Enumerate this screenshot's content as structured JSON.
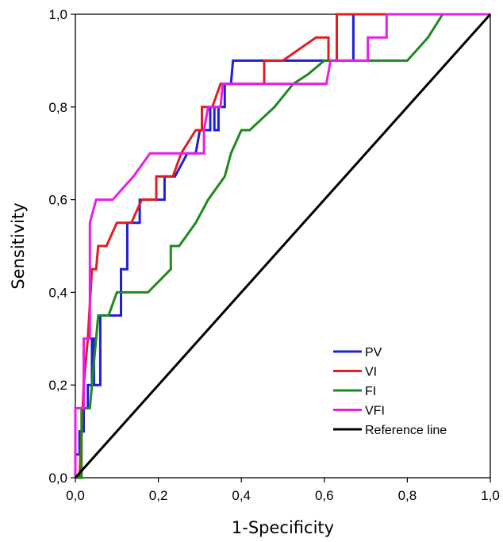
{
  "chart_data": {
    "type": "line",
    "title": "",
    "xlabel": "1-Specificity",
    "ylabel": "Sensitivity",
    "xlim": [
      0,
      1
    ],
    "ylim": [
      0,
      1
    ],
    "grid": false,
    "legend_placement": "bottom-right",
    "x_ticks": [
      "0,0",
      "0,2",
      "0,4",
      "0,6",
      "0,8",
      "1,0"
    ],
    "y_ticks": [
      "0,0",
      "0,2",
      "0,4",
      "0,6",
      "0,8",
      "1,0"
    ],
    "series": [
      {
        "name": "PV",
        "color": "#1f1fd6",
        "points": [
          [
            0,
            0
          ],
          [
            0,
            0.05
          ],
          [
            0.01,
            0.05
          ],
          [
            0.01,
            0.1
          ],
          [
            0.02,
            0.1
          ],
          [
            0.02,
            0.15
          ],
          [
            0.03,
            0.15
          ],
          [
            0.03,
            0.2
          ],
          [
            0.04,
            0.2
          ],
          [
            0.04,
            0.3
          ],
          [
            0.045,
            0.3
          ],
          [
            0.045,
            0.2
          ],
          [
            0.06,
            0.2
          ],
          [
            0.06,
            0.35
          ],
          [
            0.11,
            0.35
          ],
          [
            0.11,
            0.45
          ],
          [
            0.125,
            0.45
          ],
          [
            0.125,
            0.55
          ],
          [
            0.155,
            0.55
          ],
          [
            0.155,
            0.6
          ],
          [
            0.215,
            0.6
          ],
          [
            0.215,
            0.65
          ],
          [
            0.235,
            0.65
          ],
          [
            0.24,
            0.65
          ],
          [
            0.27,
            0.7
          ],
          [
            0.29,
            0.7
          ],
          [
            0.3,
            0.75
          ],
          [
            0.325,
            0.75
          ],
          [
            0.325,
            0.8
          ],
          [
            0.335,
            0.8
          ],
          [
            0.335,
            0.75
          ],
          [
            0.345,
            0.75
          ],
          [
            0.345,
            0.8
          ],
          [
            0.36,
            0.8
          ],
          [
            0.36,
            0.85
          ],
          [
            0.375,
            0.85
          ],
          [
            0.38,
            0.9
          ],
          [
            0.67,
            0.9
          ],
          [
            0.67,
            1.0
          ],
          [
            1.0,
            1.0
          ]
        ]
      },
      {
        "name": "VI",
        "color": "#e01e1e",
        "points": [
          [
            0,
            0
          ],
          [
            0.01,
            0
          ],
          [
            0.02,
            0.2
          ],
          [
            0.03,
            0.3
          ],
          [
            0.04,
            0.45
          ],
          [
            0.05,
            0.45
          ],
          [
            0.055,
            0.5
          ],
          [
            0.075,
            0.5
          ],
          [
            0.1,
            0.55
          ],
          [
            0.135,
            0.55
          ],
          [
            0.16,
            0.6
          ],
          [
            0.195,
            0.6
          ],
          [
            0.195,
            0.65
          ],
          [
            0.215,
            0.65
          ],
          [
            0.235,
            0.65
          ],
          [
            0.255,
            0.7
          ],
          [
            0.29,
            0.75
          ],
          [
            0.305,
            0.75
          ],
          [
            0.305,
            0.8
          ],
          [
            0.33,
            0.8
          ],
          [
            0.35,
            0.85
          ],
          [
            0.455,
            0.85
          ],
          [
            0.455,
            0.9
          ],
          [
            0.5,
            0.9
          ],
          [
            0.58,
            0.95
          ],
          [
            0.6,
            0.95
          ],
          [
            0.61,
            0.95
          ],
          [
            0.61,
            0.9
          ],
          [
            0.63,
            0.9
          ],
          [
            0.63,
            1.0
          ],
          [
            1.0,
            1.0
          ]
        ]
      },
      {
        "name": "FI",
        "color": "#1e8a1e",
        "points": [
          [
            0,
            0
          ],
          [
            0.015,
            0
          ],
          [
            0.015,
            0.15
          ],
          [
            0.035,
            0.15
          ],
          [
            0.045,
            0.25
          ],
          [
            0.055,
            0.35
          ],
          [
            0.08,
            0.35
          ],
          [
            0.1,
            0.4
          ],
          [
            0.175,
            0.4
          ],
          [
            0.23,
            0.45
          ],
          [
            0.23,
            0.5
          ],
          [
            0.25,
            0.5
          ],
          [
            0.29,
            0.55
          ],
          [
            0.32,
            0.6
          ],
          [
            0.36,
            0.65
          ],
          [
            0.375,
            0.7
          ],
          [
            0.375,
            0.7
          ],
          [
            0.4,
            0.75
          ],
          [
            0.42,
            0.75
          ],
          [
            0.48,
            0.8
          ],
          [
            0.525,
            0.85
          ],
          [
            0.56,
            0.87
          ],
          [
            0.6,
            0.9
          ],
          [
            0.72,
            0.9
          ],
          [
            0.8,
            0.9
          ],
          [
            0.85,
            0.95
          ],
          [
            0.885,
            1.0
          ],
          [
            1.0,
            1.0
          ]
        ]
      },
      {
        "name": "VFI",
        "color": "#e81ee8",
        "points": [
          [
            0,
            0
          ],
          [
            0,
            0.15
          ],
          [
            0.02,
            0.15
          ],
          [
            0.02,
            0.3
          ],
          [
            0.035,
            0.3
          ],
          [
            0.035,
            0.55
          ],
          [
            0.05,
            0.6
          ],
          [
            0.09,
            0.6
          ],
          [
            0.11,
            0.62
          ],
          [
            0.14,
            0.65
          ],
          [
            0.18,
            0.7
          ],
          [
            0.31,
            0.7
          ],
          [
            0.31,
            0.75
          ],
          [
            0.32,
            0.8
          ],
          [
            0.35,
            0.8
          ],
          [
            0.355,
            0.85
          ],
          [
            0.605,
            0.85
          ],
          [
            0.615,
            0.9
          ],
          [
            0.705,
            0.9
          ],
          [
            0.705,
            0.95
          ],
          [
            0.75,
            0.95
          ],
          [
            0.75,
            1.0
          ],
          [
            1.0,
            1.0
          ]
        ]
      },
      {
        "name": "Reference line",
        "color": "#000000",
        "points": [
          [
            0,
            0
          ],
          [
            1,
            1
          ]
        ]
      }
    ]
  }
}
